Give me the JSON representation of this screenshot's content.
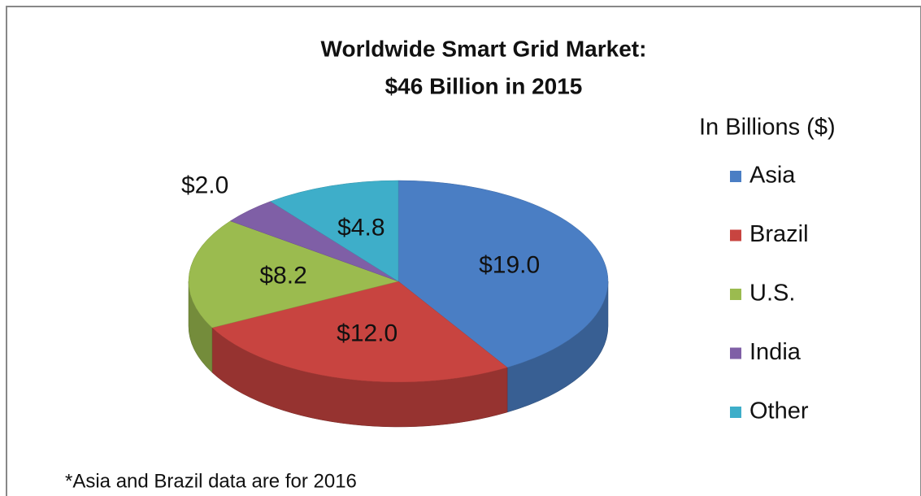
{
  "chart_data": {
    "type": "pie",
    "title": "Worldwide Smart Grid Market:",
    "subtitle": "$46 Billion in 2015",
    "legend_title": "In Billions ($)",
    "footnote": "*Asia and Brazil data are for 2016",
    "categories": [
      "Asia",
      "Brazil",
      "U.S.",
      "India",
      "Other"
    ],
    "values": [
      19.0,
      12.0,
      8.2,
      2.0,
      4.8
    ],
    "value_labels": [
      "$19.0",
      "$12.0",
      "$8.2",
      "$2.0",
      "$4.8"
    ],
    "colors": [
      "#4a7ec4",
      "#c84440",
      "#9bbb4f",
      "#7f5fa6",
      "#3eaec9"
    ],
    "legend": "right"
  }
}
